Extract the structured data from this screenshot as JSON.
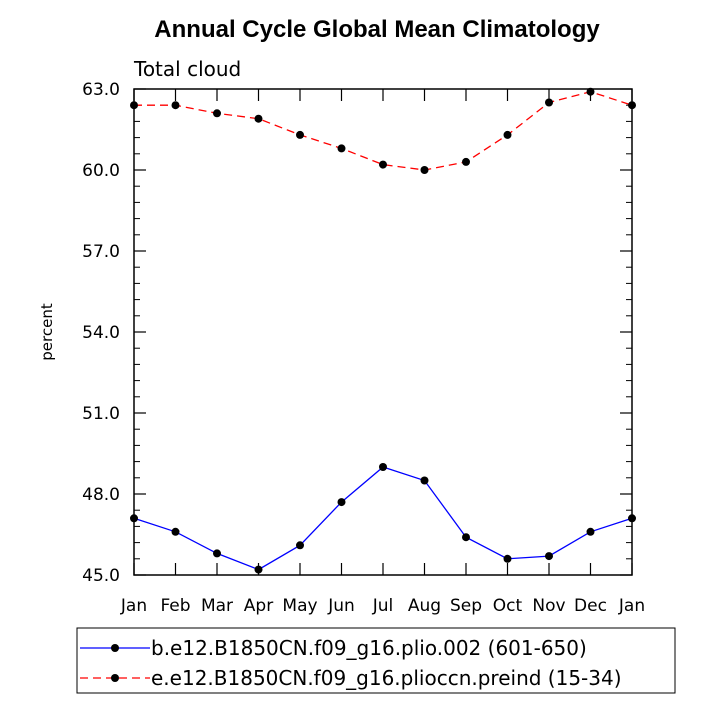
{
  "chart_data": {
    "type": "line",
    "title": "Annual Cycle Global Mean Climatology",
    "subtitle": "Total cloud",
    "ylabel": "percent",
    "xlabel": "",
    "categories": [
      "Jan",
      "Feb",
      "Mar",
      "Apr",
      "May",
      "Jun",
      "Jul",
      "Aug",
      "Sep",
      "Oct",
      "Nov",
      "Dec",
      "Jan"
    ],
    "ylim": [
      45.0,
      63.0
    ],
    "yticks": [
      "45.0",
      "48.0",
      "51.0",
      "54.0",
      "57.0",
      "60.0",
      "63.0"
    ],
    "grid": false,
    "legend_position": "bottom",
    "series": [
      {
        "name": "b.e12.B1850CN.f09_g16.plio.002 (601-650)",
        "color": "#0000ff",
        "dash": "solid",
        "values": [
          47.1,
          46.6,
          45.8,
          45.2,
          46.1,
          47.7,
          49.0,
          48.5,
          46.4,
          45.6,
          45.7,
          46.6,
          47.1
        ]
      },
      {
        "name": "e.e12.B1850CN.f09_g16.plioccn.preind (15-34)",
        "color": "#ff0000",
        "dash": "dashed",
        "values": [
          62.4,
          62.4,
          62.1,
          61.9,
          61.3,
          60.8,
          60.2,
          60.0,
          60.3,
          61.3,
          62.5,
          62.9,
          62.4
        ]
      }
    ]
  }
}
